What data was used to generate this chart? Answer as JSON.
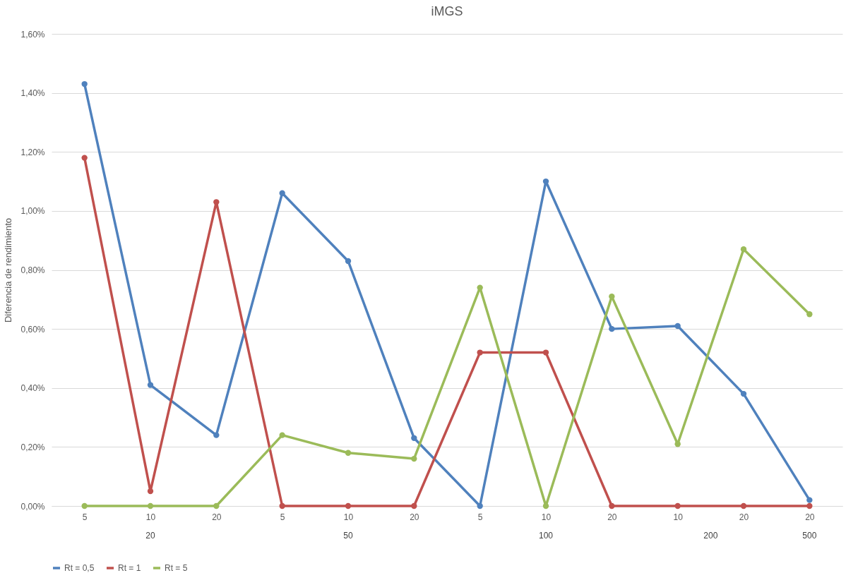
{
  "chart_data": {
    "type": "line",
    "title": "iMGS",
    "ylabel": "Diferencia de rendimiento",
    "categories": [
      "5",
      "10",
      "20",
      "5",
      "10",
      "20",
      "5",
      "10",
      "20",
      "10",
      "20",
      "20"
    ],
    "annotations": [
      "20",
      "50",
      "100",
      "200",
      "500"
    ],
    "series": [
      {
        "name": "Rt = 0,5",
        "color": "#4f81bd",
        "values": [
          1.43,
          0.41,
          0.24,
          1.06,
          0.83,
          0.23,
          0,
          1.1,
          0.6,
          0.61,
          0.38,
          0.02
        ]
      },
      {
        "name": "Rt = 1",
        "color": "#c0504d",
        "values": [
          1.18,
          0.05,
          1.03,
          0,
          0,
          0,
          0.52,
          0.52,
          0,
          0,
          0,
          0
        ]
      },
      {
        "name": "Rt = 5",
        "color": "#9bbb59",
        "values": [
          0,
          0,
          0,
          0.24,
          0.18,
          0.16,
          0.74,
          0,
          0.71,
          0.21,
          0.87,
          0.65
        ]
      }
    ],
    "ylim": [
      0,
      1.6
    ],
    "yticks": [
      {
        "value": 0,
        "label": "0,00%"
      },
      {
        "value": 0.2,
        "label": "0,20%"
      },
      {
        "value": 0.4,
        "label": "0,40%"
      },
      {
        "value": 0.6,
        "label": "0,60%"
      },
      {
        "value": 0.8,
        "label": "0,80%"
      },
      {
        "value": 1,
        "label": "1,00%"
      },
      {
        "value": 1.2,
        "label": "1,20%"
      },
      {
        "value": 1.4,
        "label": "1,40%"
      },
      {
        "value": 1.6,
        "label": "1,60%"
      }
    ],
    "grid": "y",
    "legend": "bottom",
    "marker": "circle",
    "line_style": "solid"
  }
}
